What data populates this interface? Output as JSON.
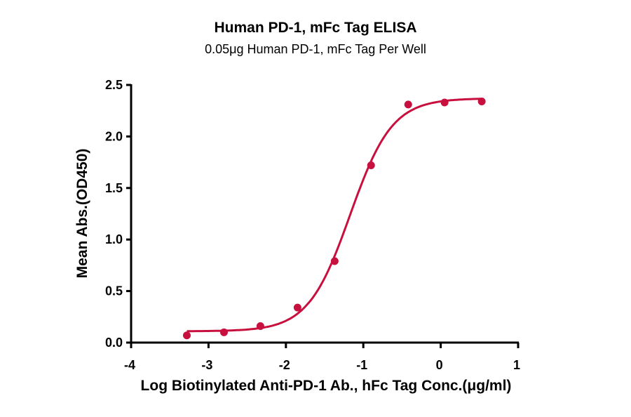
{
  "chart_data": {
    "type": "line",
    "title": "Human PD-1, mFc Tag ELISA",
    "subtitle": "0.05μg Human PD-1, mFc Tag Per Well",
    "xlabel": "Log Biotinylated Anti-PD-1 Ab., hFc Tag Conc.(μg/ml)",
    "ylabel": "Mean Abs.(OD450)",
    "xlim": [
      -4,
      1
    ],
    "ylim": [
      0,
      2.5
    ],
    "x_ticks": [
      "-4",
      "-3",
      "-2",
      "-1",
      "0",
      "1"
    ],
    "y_ticks": [
      "0.0",
      "0.5",
      "1.0",
      "1.5",
      "2.0",
      "2.5"
    ],
    "grid": false,
    "color": "#c8103e",
    "series": [
      {
        "name": "Human PD-1, mFc Tag",
        "x": [
          -3.28,
          -2.8,
          -2.33,
          -1.85,
          -1.37,
          -0.9,
          -0.42,
          0.05,
          0.53
        ],
        "values": [
          0.07,
          0.1,
          0.16,
          0.34,
          0.79,
          1.72,
          2.31,
          2.33,
          2.34
        ],
        "fit": "4PL sigmoid",
        "fit_params": {
          "bottom": 0.11,
          "top": 2.37,
          "log_ec50": -1.17,
          "hill": 1.6
        }
      }
    ]
  }
}
